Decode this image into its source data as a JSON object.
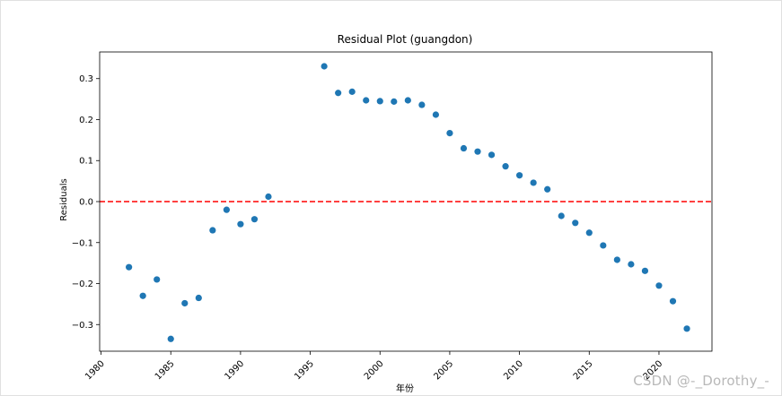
{
  "chart_data": {
    "type": "scatter",
    "title": "Residual Plot (guangdon)",
    "xlabel": "年份",
    "ylabel": "Residuals",
    "xlim": [
      1979.9,
      2023.8
    ],
    "ylim": [
      -0.365,
      0.365
    ],
    "x_ticks": [
      1980,
      1985,
      1990,
      1995,
      2000,
      2005,
      2010,
      2015,
      2020
    ],
    "x_tick_labels": [
      "1980",
      "1985",
      "1990",
      "1995",
      "2000",
      "2005",
      "2010",
      "2015",
      "2020"
    ],
    "y_ticks": [
      -0.3,
      -0.2,
      -0.1,
      0.0,
      0.1,
      0.2,
      0.3
    ],
    "y_tick_labels": [
      "−0.3",
      "−0.2",
      "−0.1",
      "0.0",
      "0.1",
      "0.2",
      "0.3"
    ],
    "reference_line": {
      "y": 0,
      "style": "dashed",
      "color": "#ff0000"
    },
    "point_color": "#1f77b4",
    "grid": false,
    "series": [
      {
        "name": "residuals",
        "x": [
          1982,
          1983,
          1984,
          1985,
          1986,
          1987,
          1988,
          1989,
          1990,
          1991,
          1992,
          1996,
          1997,
          1998,
          1999,
          2000,
          2001,
          2002,
          2003,
          2004,
          2005,
          2006,
          2007,
          2008,
          2009,
          2010,
          2011,
          2012,
          2013,
          2014,
          2015,
          2016,
          2017,
          2018,
          2019,
          2020,
          2021,
          2022
        ],
        "y": [
          -0.16,
          -0.23,
          -0.19,
          -0.335,
          -0.248,
          -0.235,
          -0.07,
          -0.02,
          -0.055,
          -0.043,
          0.012,
          0.33,
          0.265,
          0.268,
          0.247,
          0.245,
          0.244,
          0.247,
          0.236,
          0.212,
          0.167,
          0.13,
          0.122,
          0.114,
          0.086,
          0.064,
          0.046,
          0.03,
          -0.035,
          -0.052,
          -0.076,
          -0.107,
          -0.142,
          -0.153,
          -0.169,
          -0.205,
          -0.243,
          -0.31
        ]
      }
    ]
  },
  "watermark": "CSDN @-_Dorothy_-"
}
